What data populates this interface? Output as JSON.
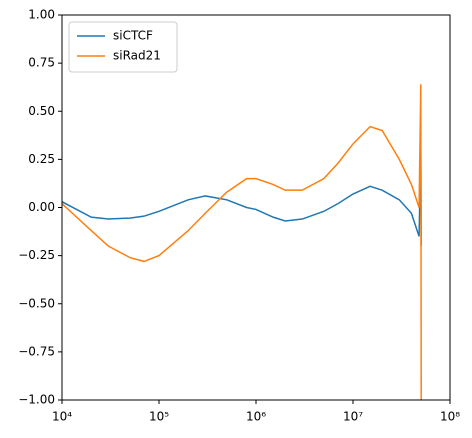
{
  "chart_data": {
    "type": "line",
    "xscale": "log",
    "legend": "upper left",
    "x": [
      10000,
      20000,
      30000,
      50000,
      70000,
      100000,
      200000,
      300000,
      500000,
      800000,
      1000000,
      1500000,
      2000000,
      3000000,
      5000000,
      7000000,
      10000000,
      15000000,
      20000000,
      30000000,
      40000000,
      48000000,
      50000000,
      50500000
    ],
    "series": [
      {
        "name": "siCTCF",
        "color": "#1f77b4",
        "values": [
          0.03,
          -0.05,
          -0.06,
          -0.055,
          -0.045,
          -0.02,
          0.04,
          0.06,
          0.04,
          0.0,
          -0.01,
          -0.05,
          -0.07,
          -0.06,
          -0.02,
          0.02,
          0.07,
          0.11,
          0.09,
          0.04,
          -0.03,
          -0.15,
          0.3,
          -0.2
        ]
      },
      {
        "name": "siRad21",
        "color": "#ff7f0e",
        "values": [
          0.02,
          -0.12,
          -0.2,
          -0.26,
          -0.28,
          -0.25,
          -0.12,
          -0.03,
          0.08,
          0.15,
          0.15,
          0.12,
          0.09,
          0.09,
          0.15,
          0.23,
          0.33,
          0.42,
          0.4,
          0.25,
          0.12,
          0.0,
          0.64,
          -1.0
        ]
      }
    ],
    "xlim": [
      10000,
      100000000
    ],
    "xticks": [
      {
        "value": 10000,
        "label": "10⁴"
      },
      {
        "value": 100000,
        "label": "10⁵"
      },
      {
        "value": 1000000,
        "label": "10⁶"
      },
      {
        "value": 10000000,
        "label": "10⁷"
      },
      {
        "value": 100000000,
        "label": "10⁸"
      }
    ],
    "ylim": [
      -1,
      1
    ],
    "yticks": [
      {
        "value": -1,
        "label": "−1.00"
      },
      {
        "value": -0.75,
        "label": "−0.75"
      },
      {
        "value": -0.5,
        "label": "−0.50"
      },
      {
        "value": -0.25,
        "label": "−0.25"
      },
      {
        "value": 0,
        "label": "0.00"
      },
      {
        "value": 0.25,
        "label": "0.25"
      },
      {
        "value": 0.5,
        "label": "0.50"
      },
      {
        "value": 0.75,
        "label": "0.75"
      },
      {
        "value": 1,
        "label": "1.00"
      }
    ]
  }
}
